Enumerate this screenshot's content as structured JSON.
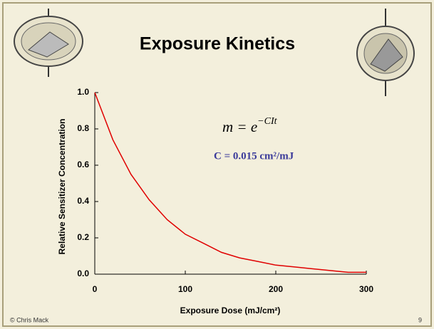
{
  "chart_data": {
    "type": "line",
    "title": "Exposure Kinetics",
    "equation": {
      "base": "m = e",
      "exponent": "−CIt"
    },
    "annotation": "C = 0.015 cm²/mJ",
    "x_label": "Exposure Dose (mJ/cm²)",
    "y_label": "Relative Sensitizer Concentration",
    "x": [
      0,
      20,
      40,
      60,
      80,
      100,
      120,
      140,
      160,
      180,
      200,
      220,
      240,
      260,
      280,
      300
    ],
    "values": [
      1.0,
      0.74,
      0.55,
      0.41,
      0.3,
      0.22,
      0.17,
      0.12,
      0.09,
      0.07,
      0.05,
      0.04,
      0.03,
      0.02,
      0.01,
      0.01
    ],
    "color": "#e00000",
    "xlim": [
      0,
      300
    ],
    "xticks": [
      0,
      100,
      200,
      300
    ],
    "ylim": [
      0,
      1
    ],
    "yticks": [
      {
        "value": 0,
        "label": "0.0"
      },
      0.2,
      0.4,
      0.6,
      0.8,
      {
        "value": 1,
        "label": "1.0"
      }
    ]
  },
  "footer": {
    "author": "© Chris Mack",
    "page": "9"
  }
}
